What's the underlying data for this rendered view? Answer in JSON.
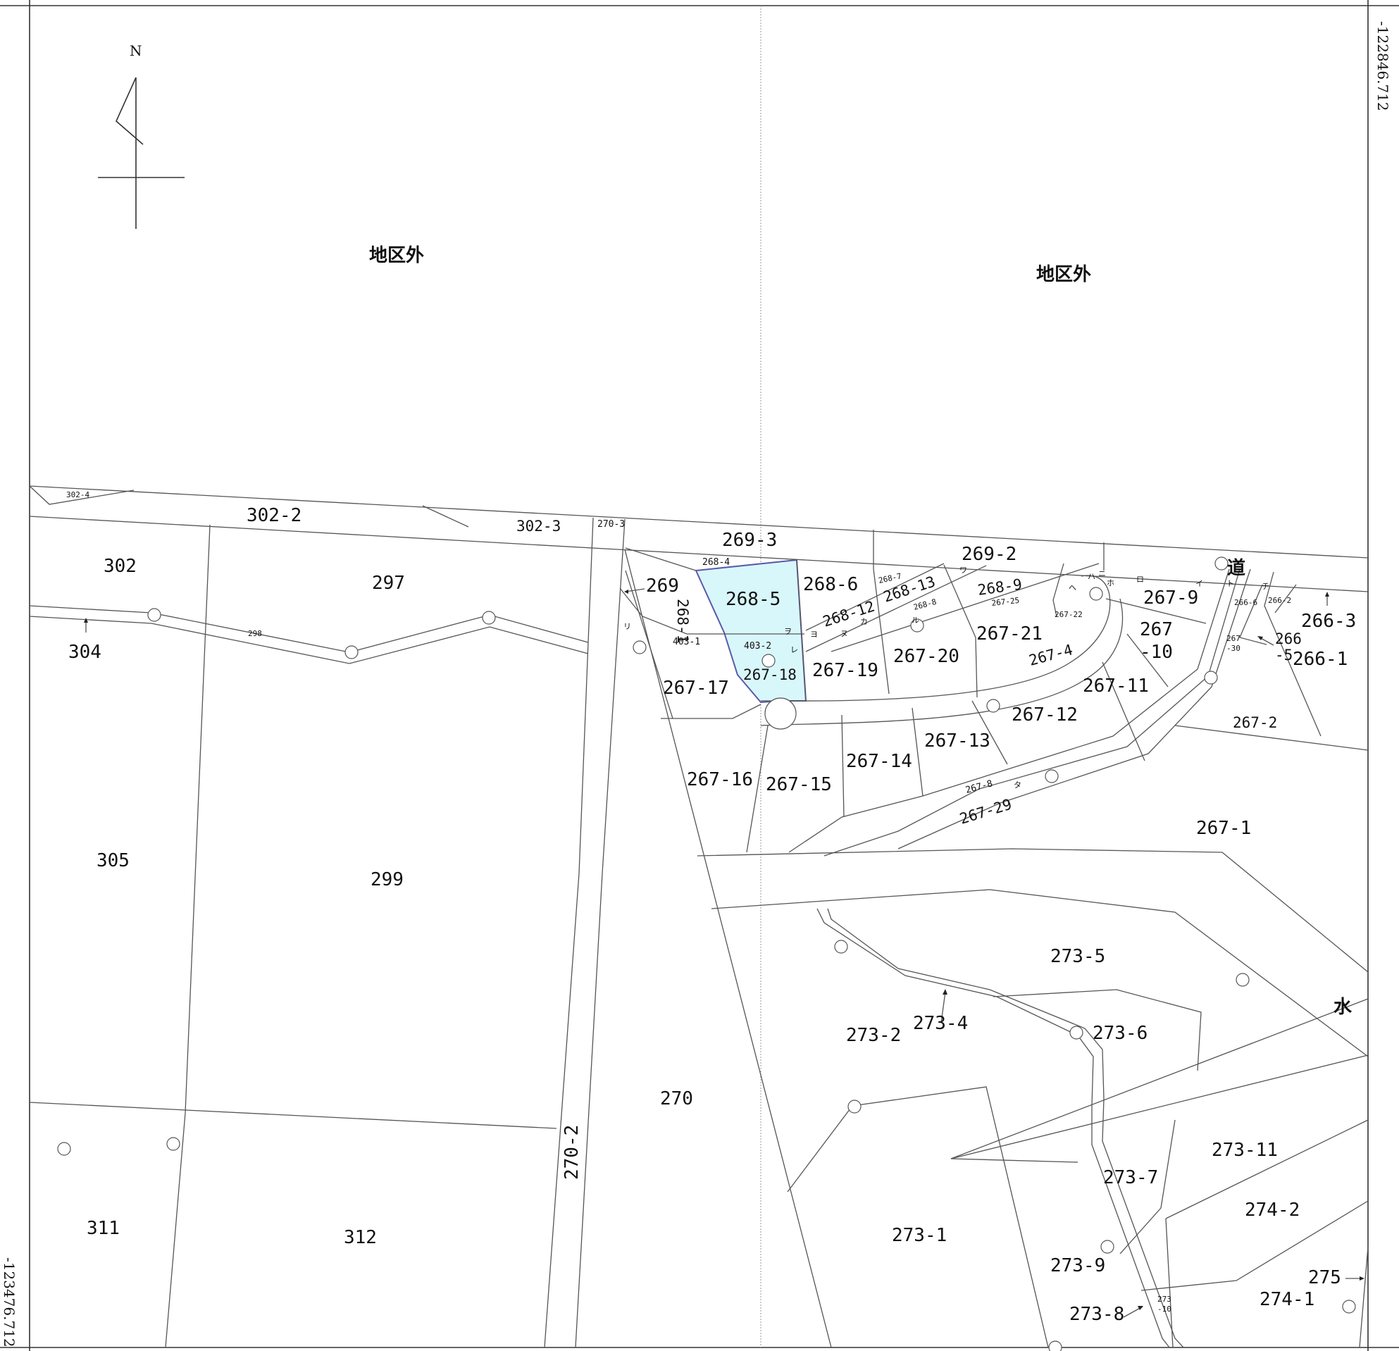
{
  "map": {
    "north_label": "N",
    "coords": {
      "top_right": "-122846.712",
      "bottom_left": "-123476.712"
    },
    "colors": {
      "highlight_fill": "#d8f7fb",
      "highlight_stroke": "#5a5aa8",
      "line": "#555555"
    },
    "areas": {
      "outside_left": "地区外",
      "outside_right": "地区外",
      "road": "道",
      "water": "水"
    },
    "selected_lot": "268-5",
    "lots": {
      "l302_4": "302-4",
      "l302_2": "302-2",
      "l302_3": "302-3",
      "l270_3": "270-3",
      "l269_3": "269-3",
      "l269_2": "269-2",
      "l302": "302",
      "l297": "297",
      "l268_4": "268-4",
      "l269": "269",
      "l268_1": "268-1",
      "l268_6": "268-6",
      "l268_7": "268-7",
      "l268_13": "268-13",
      "l268_9": "268-9",
      "l268_12": "268-12",
      "l268_8": "268-8",
      "l267_25": "267-25",
      "l267_22": "267-22",
      "l267_9": "267-9",
      "l266_6": "266-6",
      "l266_2": "266-2",
      "l266_3": "266-3",
      "l267_10a": "267",
      "l267_10b": "-10",
      "l267_30a": "267",
      "l267_30b": "-30",
      "l266_5a": "266",
      "l266_5b": "-5",
      "l266_1": "266-1",
      "l304": "304",
      "l298": "298",
      "l403_1": "403-1",
      "l403_2": "403-2",
      "l267_18": "267-18",
      "l267_19": "267-19",
      "l267_20": "267-20",
      "l267_21": "267-21",
      "l267_4": "267-4",
      "l267_11": "267-11",
      "l267_17": "267-17",
      "l267_12": "267-12",
      "l267_13": "267-13",
      "l267_2": "267-2",
      "l267_14": "267-14",
      "l267_16": "267-16",
      "l267_15": "267-15",
      "l267_8": "267-8",
      "l267_29": "267-29",
      "l267_1": "267-1",
      "l305": "305",
      "l299": "299",
      "l273_5": "273-5",
      "l273_2": "273-2",
      "l273_4": "273-4",
      "l273_6": "273-6",
      "l270": "270",
      "l270_2": "270-2",
      "l273_11": "273-11",
      "l273_7": "273-7",
      "l274_2": "274-2",
      "l311": "311",
      "l312": "312",
      "l273_1": "273-1",
      "l273_9": "273-9",
      "l275": "275",
      "l273_10a": "273",
      "l273_10b": "-10",
      "l274_1": "274-1",
      "l273_8": "273-8"
    },
    "point_letters": [
      "リ",
      "ヲ",
      "ヨ",
      "ヌ",
      "カ",
      "ワ",
      "ル",
      "レ",
      "ヘ",
      "ハ",
      "ニ",
      "ホ",
      "ロ",
      "イ",
      "ト",
      "チ",
      "タ"
    ]
  }
}
